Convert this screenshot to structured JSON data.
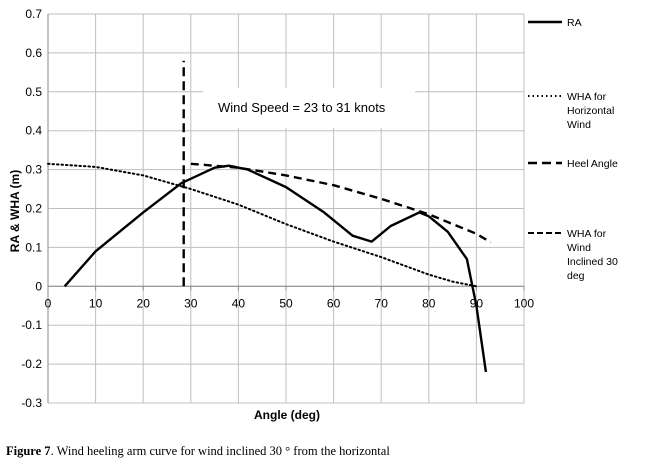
{
  "chart_data": {
    "type": "line",
    "title": "",
    "xlabel": "Angle (deg)",
    "ylabel": "RA & WHA (m)",
    "xlim": [
      0,
      100
    ],
    "ylim": [
      -0.3,
      0.7
    ],
    "xticks": [
      "0",
      "10",
      "20",
      "30",
      "40",
      "50",
      "60",
      "70",
      "80",
      "90",
      "100"
    ],
    "yticks": [
      "0.7",
      "0.6",
      "0.5",
      "0.4",
      "0.3",
      "0.2",
      "0.1",
      "0",
      "-0.1",
      "-0.2",
      "-0.3"
    ],
    "grid": true,
    "legend_position": "right",
    "annotation": "Wind Speed = 23 to 31 knots",
    "series": [
      {
        "name": "RA",
        "style": "solid",
        "x": [
          3.5,
          10,
          20,
          28,
          35,
          38,
          42,
          50,
          58,
          64,
          68,
          72,
          78,
          80,
          84,
          88,
          90,
          92
        ],
        "y": [
          0,
          0.09,
          0.19,
          0.265,
          0.305,
          0.31,
          0.3,
          0.255,
          0.19,
          0.13,
          0.115,
          0.155,
          0.19,
          0.18,
          0.14,
          0.07,
          -0.05,
          -0.22
        ]
      },
      {
        "name": "WHA for Horizontal Wind",
        "style": "dotted",
        "x": [
          0,
          10,
          20,
          30,
          40,
          50,
          60,
          70,
          80,
          85,
          90
        ],
        "y": [
          0.315,
          0.307,
          0.285,
          0.25,
          0.21,
          0.16,
          0.115,
          0.075,
          0.03,
          0.012,
          0
        ]
      },
      {
        "name": "Heel Angle",
        "style": "dashed",
        "x": [
          28.5,
          28.5
        ],
        "y": [
          0,
          0.58
        ]
      },
      {
        "name": "WHA for Wind Inclined 30 deg",
        "style": "dashed",
        "x": [
          30,
          40,
          50,
          60,
          70,
          80,
          90,
          93
        ],
        "y": [
          0.315,
          0.305,
          0.285,
          0.26,
          0.225,
          0.185,
          0.135,
          0.113
        ]
      }
    ]
  },
  "caption": {
    "label": "Figure 7",
    "text": ". Wind heeling arm curve for wind inclined 30 ° from the horizontal"
  }
}
